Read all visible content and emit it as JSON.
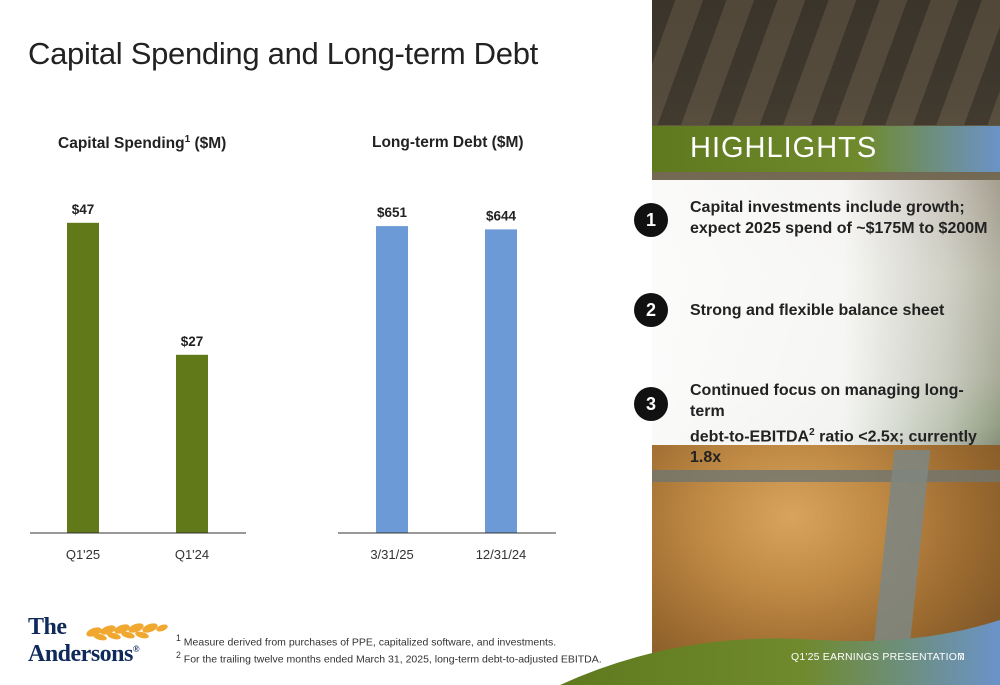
{
  "slide": {
    "title": "Capital Spending and Long-term Debt",
    "footer_label": "Q1'25 EARNINGS PRESENTATION",
    "page_number": "7"
  },
  "colors": {
    "capex_bar": "#62791a",
    "debt_bar": "#6b9ad6",
    "highlights_green": "#5f7a1e",
    "logo_navy": "#0f2a5a",
    "logo_wheat": "#f0a830"
  },
  "chart_data": [
    {
      "type": "bar",
      "title": "Capital Spending",
      "title_superscript": "1",
      "title_unit": " ($M)",
      "categories": [
        "Q1'25",
        "Q1'24"
      ],
      "values": [
        47,
        27
      ],
      "value_labels": [
        "$47",
        "$27"
      ],
      "ylim": [
        0,
        50
      ],
      "grid": false,
      "legend": "none"
    },
    {
      "type": "bar",
      "title": "Long-term Debt ($M)",
      "categories": [
        "3/31/25",
        "12/31/24"
      ],
      "values": [
        651,
        644
      ],
      "value_labels": [
        "$651",
        "$644"
      ],
      "ylim": [
        0,
        700
      ],
      "grid": false,
      "legend": "none"
    }
  ],
  "highlights": {
    "heading": "HIGHLIGHTS",
    "items": [
      {
        "number": "1",
        "line1": "Capital investments include growth;",
        "line2": "expect 2025 spend of ~$175M to $200M",
        "superscript": ""
      },
      {
        "number": "2",
        "line1": "Strong and flexible balance sheet",
        "line2": "",
        "superscript": ""
      },
      {
        "number": "3",
        "line1": "Continued focus on managing long-term",
        "line2_pre": "debt-to-EBITDA",
        "superscript": "2",
        "line2_post": " ratio <2.5x; currently 1.8x"
      }
    ]
  },
  "logo": {
    "line1": "The",
    "line2": "Andersons",
    "mark": "®"
  },
  "footnotes": [
    {
      "marker": "1",
      "text": " Measure derived from purchases of PPE, capitalized software, and investments."
    },
    {
      "marker": "2",
      "text": " For the trailing twelve months ended March 31, 2025, long-term debt-to-adjusted EBITDA."
    }
  ]
}
